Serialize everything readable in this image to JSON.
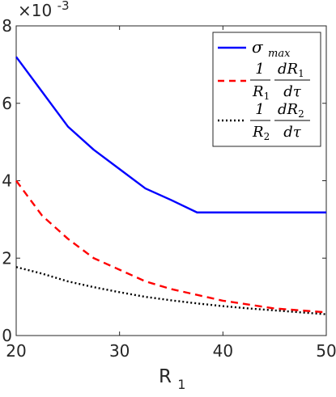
{
  "chart_data": {
    "type": "line",
    "title": "",
    "xlabel": "R",
    "xlabel_subscript": "1",
    "ylabel": "",
    "xlim": [
      20,
      50
    ],
    "ylim": [
      0,
      0.008
    ],
    "y_exponent_label": "×10",
    "y_exponent_power": "-3",
    "x_ticks": [
      20,
      30,
      40,
      50
    ],
    "x_tick_labels": [
      "20",
      "30",
      "40",
      "50"
    ],
    "y_ticks": [
      0,
      0.002,
      0.004,
      0.006,
      0.008
    ],
    "y_tick_labels": [
      "0",
      "2",
      "4",
      "6",
      "8"
    ],
    "grid": false,
    "legend_position": "top-right",
    "series": [
      {
        "name": "σ_max",
        "color": "#0000ff",
        "style": "solid",
        "x": [
          20,
          22.5,
          25,
          27.5,
          30,
          32.5,
          35,
          37.5,
          40,
          42.5,
          45,
          47.5,
          50
        ],
        "y": [
          0.0072,
          0.0063,
          0.0054,
          0.0048,
          0.0043,
          0.0038,
          0.0035,
          0.00318,
          0.00318,
          0.00318,
          0.00318,
          0.00318,
          0.00318
        ]
      },
      {
        "name": "(1/R1)(dR1/dτ)",
        "color": "#ff0000",
        "style": "dashed",
        "x": [
          20,
          22.5,
          25,
          27.5,
          30,
          32.5,
          35,
          37.5,
          40,
          42.5,
          45,
          47.5,
          50
        ],
        "y": [
          0.004,
          0.0031,
          0.0025,
          0.002,
          0.0017,
          0.0014,
          0.0012,
          0.00105,
          0.0009,
          0.0008,
          0.0007,
          0.00065,
          0.0006
        ]
      },
      {
        "name": "(1/R2)(dR2/dτ)",
        "color": "#000000",
        "style": "dotted",
        "x": [
          20,
          22.5,
          25,
          27.5,
          30,
          32.5,
          35,
          37.5,
          40,
          42.5,
          45,
          47.5,
          50
        ],
        "y": [
          0.00177,
          0.0016,
          0.0014,
          0.00125,
          0.00112,
          0.001,
          0.00091,
          0.00083,
          0.00076,
          0.0007,
          0.00065,
          0.0006,
          0.00055
        ]
      }
    ],
    "legend": [
      {
        "type": "simple",
        "symbol": "σ",
        "subscript": "max"
      },
      {
        "type": "fraction",
        "frac1_num": "1",
        "frac1_den_var": "R",
        "frac1_den_sub": "1",
        "frac2_num_var": "dR",
        "frac2_num_sub": "1",
        "frac2_den": "dτ"
      },
      {
        "type": "fraction",
        "frac1_num": "1",
        "frac1_den_var": "R",
        "frac1_den_sub": "2",
        "frac2_num_var": "dR",
        "frac2_num_sub": "2",
        "frac2_den": "dτ"
      }
    ]
  }
}
